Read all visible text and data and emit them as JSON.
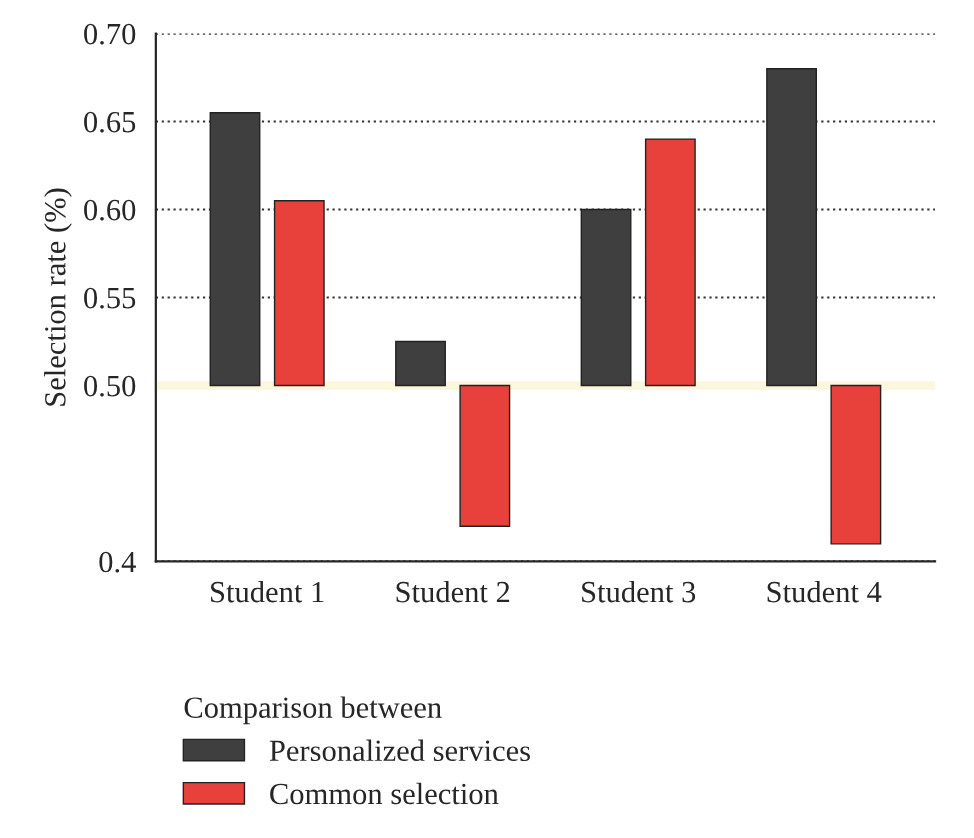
{
  "chart_data": {
    "type": "bar",
    "ylabel": "Selection rate (%)",
    "legend_title": "Comparison between",
    "categories": [
      "Student 1",
      "Student 2",
      "Student 3",
      "Student 4"
    ],
    "series": [
      {
        "name": "Personalized services",
        "color": "#3f3f3f",
        "base": [
          0.5,
          0.5,
          0.5,
          0.5
        ],
        "values": [
          0.155,
          0.025,
          0.1,
          0.18
        ]
      },
      {
        "name": "Common selection",
        "color": "#e8403a",
        "base": [
          0.5,
          0.5,
          0.5,
          0.5
        ],
        "values": [
          0.105,
          -0.08,
          0.14,
          -0.09
        ]
      }
    ],
    "ylim": [
      0.4,
      0.7
    ],
    "yticks": [
      {
        "value": 0.4,
        "label": "0.4"
      },
      {
        "value": 0.5,
        "label": "0.50"
      },
      {
        "value": 0.55,
        "label": "0.55"
      },
      {
        "value": 0.6,
        "label": "0.60"
      },
      {
        "value": 0.65,
        "label": "0.65"
      },
      {
        "value": 0.7,
        "label": "0.70"
      }
    ],
    "ref_lines": [
      {
        "axis": "y",
        "value": 0.5,
        "color": "#fbf6dc"
      }
    ],
    "grid": "y",
    "legend": "bottom left"
  }
}
